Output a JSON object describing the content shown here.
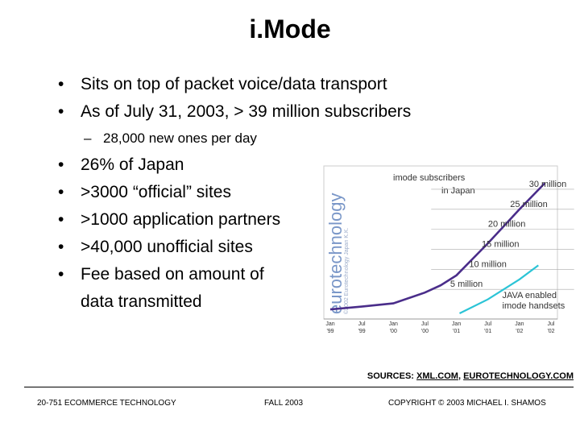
{
  "slide": {
    "title": "i.Mode",
    "bullets_top": [
      "Sits on top of packet voice/data transport",
      "As of July 31, 2003, > 39 million subscribers"
    ],
    "sub_bullets": [
      "28,000 new ones per day"
    ],
    "bullets_bottom": [
      "26% of Japan",
      ">3000 “official” sites",
      ">1000 application partners",
      ">40,000 unofficial sites",
      "Fee based on amount of data transmitted"
    ],
    "sources_label": "SOURCES:",
    "sources_links": [
      "XML.COM",
      "EUROTECHNOLOGY.COM"
    ],
    "footer_left": "20-751 ECOMMERCE TECHNOLOGY",
    "footer_mid": "FALL 2003",
    "footer_right": "COPYRIGHT © 2003 MICHAEL I. SHAMOS"
  },
  "chart_data": {
    "type": "line",
    "title": "imode subscribers in Japan",
    "watermark": "eurotechnology",
    "watermark_small": "©2002 Eurotechnology Japan K.K.",
    "x_ticks": [
      [
        "Jan",
        "'99"
      ],
      [
        "Jul",
        "'99"
      ],
      [
        "Jan",
        "'00"
      ],
      [
        "Jul",
        "'00"
      ],
      [
        "Jan",
        "'01"
      ],
      [
        "Jul",
        "'01"
      ],
      [
        "Jan",
        "'02"
      ],
      [
        "Jul",
        "'02"
      ]
    ],
    "series": [
      {
        "name": "imode subscribers",
        "color": "#4a2d8a",
        "x": [
          0,
          1,
          2,
          3,
          3.5,
          4,
          5,
          6,
          6.8
        ],
        "y": [
          0,
          0.7,
          1.5,
          4.2,
          6,
          8.5,
          16.5,
          25,
          31.5
        ]
      },
      {
        "name": "JAVA enabled imode handsets",
        "color": "#2bc4d6",
        "x": [
          4.1,
          5,
          6,
          6.6
        ],
        "y": [
          -1,
          2.5,
          7.5,
          11
        ]
      }
    ],
    "level_labels": [
      "5 million",
      "10 million",
      "15 million",
      "20 million",
      "25 million",
      "30 million"
    ],
    "level_values": [
      5,
      10,
      15,
      20,
      25,
      30
    ],
    "java_label_lines": [
      "JAVA enabled",
      "imode handsets"
    ],
    "ylim": [
      -2,
      33
    ]
  }
}
